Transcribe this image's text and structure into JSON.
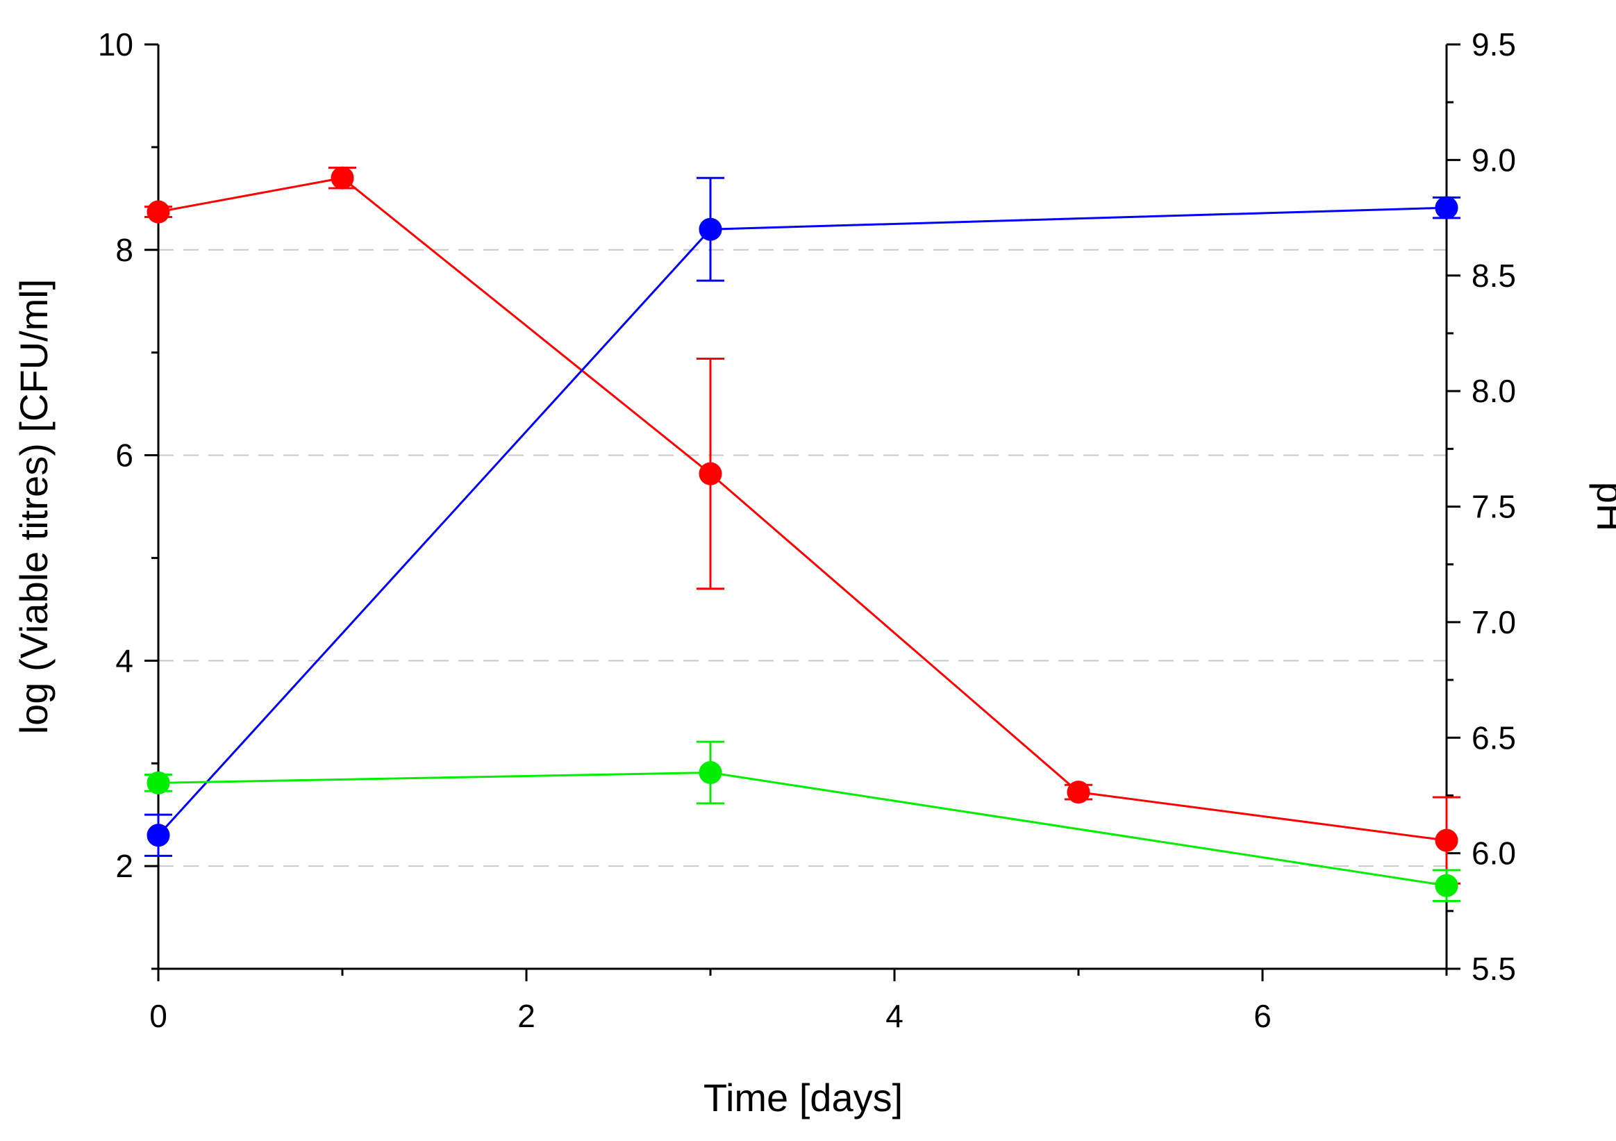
{
  "chart_data": {
    "type": "line",
    "title": "",
    "xlabel": "Time [days]",
    "ylabel": "log (Viable titres) [CFU/ml]",
    "y2label": "pH",
    "xlim": [
      0,
      7
    ],
    "ylim": [
      1,
      10
    ],
    "y2lim": [
      5.5,
      9.5
    ],
    "xticks": [
      0,
      2,
      4,
      6
    ],
    "xtick_labels": [
      "0",
      "2",
      "4",
      "6"
    ],
    "yticks": [
      2,
      4,
      6,
      8,
      10
    ],
    "ytick_labels": [
      "2",
      "4",
      "6",
      "8",
      "10"
    ],
    "y2ticks": [
      5.5,
      6.0,
      6.5,
      7.0,
      7.5,
      8.0,
      8.5,
      9.0,
      9.5
    ],
    "y2tick_labels": [
      "5.5",
      "6.0",
      "6.5",
      "7.0",
      "7.5",
      "8.0",
      "8.5",
      "9.0",
      "9.5"
    ],
    "grid_y": [
      2,
      4,
      6,
      8
    ],
    "grid": "horizontal dashed",
    "series": [
      {
        "name": "red series",
        "color": "#ff0000",
        "axis": "left",
        "x": [
          0,
          1,
          3,
          5,
          7
        ],
        "values": [
          8.37,
          8.7,
          5.82,
          2.72,
          2.25
        ],
        "errors": [
          0.05,
          0.1,
          1.12,
          0.07,
          0.42
        ]
      },
      {
        "name": "blue series",
        "color": "#0000ff",
        "axis": "left",
        "x": [
          0,
          3,
          7
        ],
        "values": [
          2.3,
          8.2,
          8.41
        ],
        "errors": [
          0.2,
          0.5,
          0.1
        ]
      },
      {
        "name": "green series",
        "color": "#00ee00",
        "axis": "left",
        "x": [
          0,
          3,
          7
        ],
        "values": [
          2.81,
          2.91,
          1.81
        ],
        "errors": [
          0.08,
          0.3,
          0.15
        ]
      }
    ]
  }
}
